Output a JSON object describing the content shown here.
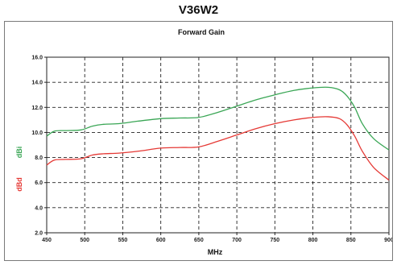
{
  "header": {
    "title": "V36W2"
  },
  "chart_data": {
    "type": "line",
    "title": "Forward Gain",
    "xlabel": "MHz",
    "ylabels": [
      "dBi",
      "dBd"
    ],
    "xlim": [
      450,
      900
    ],
    "ylim": [
      2.0,
      16.0
    ],
    "xticks": [
      "450",
      "500",
      "550",
      "600",
      "650",
      "700",
      "750",
      "800",
      "850",
      "900"
    ],
    "yticks": [
      "2.0",
      "4.0",
      "6.0",
      "8.0",
      "10.0",
      "12.0",
      "14.0",
      "16.0"
    ],
    "grid": true,
    "series": [
      {
        "name": "dBi",
        "color": "#3aa655",
        "x": [
          450,
          460,
          475,
          495,
          510,
          525,
          545,
          570,
          600,
          625,
          650,
          675,
          700,
          725,
          750,
          775,
          800,
          820,
          835,
          845,
          855,
          865,
          880,
          900
        ],
        "y": [
          9.7,
          10.1,
          10.15,
          10.2,
          10.5,
          10.65,
          10.7,
          10.9,
          11.1,
          11.15,
          11.2,
          11.6,
          12.1,
          12.6,
          13.0,
          13.35,
          13.55,
          13.6,
          13.4,
          12.9,
          12.0,
          10.7,
          9.5,
          8.6
        ]
      },
      {
        "name": "dBd",
        "color": "#e53935",
        "x": [
          450,
          460,
          475,
          495,
          510,
          525,
          545,
          570,
          600,
          625,
          650,
          675,
          700,
          725,
          750,
          775,
          800,
          820,
          835,
          845,
          855,
          865,
          880,
          900
        ],
        "y": [
          7.4,
          7.8,
          7.85,
          7.9,
          8.2,
          8.3,
          8.35,
          8.5,
          8.75,
          8.8,
          8.85,
          9.3,
          9.8,
          10.3,
          10.7,
          11.0,
          11.2,
          11.25,
          11.1,
          10.6,
          9.7,
          8.5,
          7.2,
          6.2
        ]
      }
    ]
  }
}
